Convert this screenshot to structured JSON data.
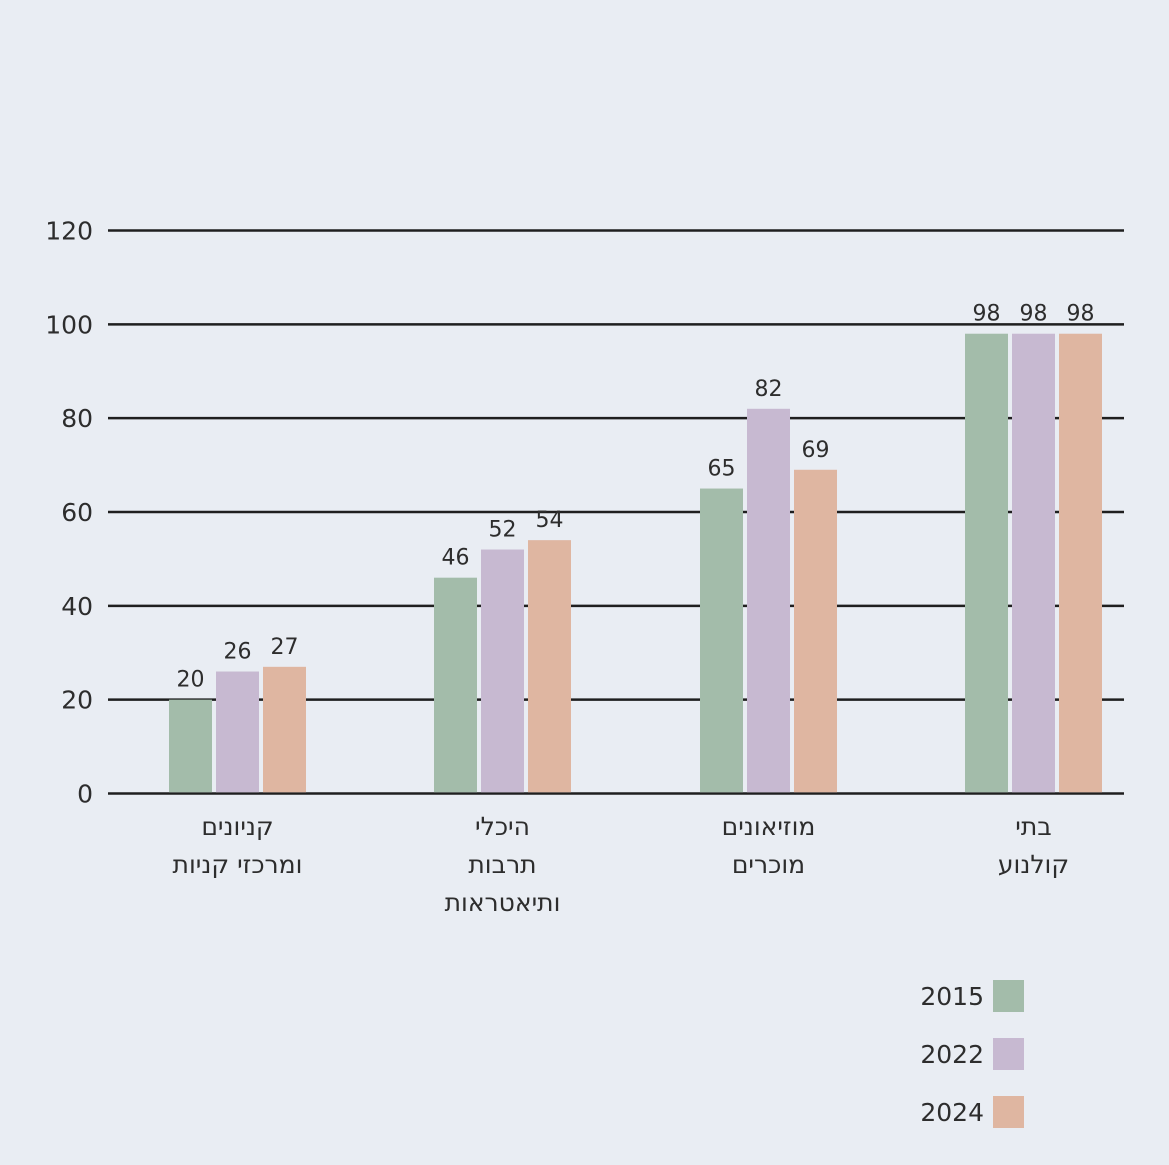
{
  "chart_data": {
    "type": "bar",
    "categories": [
      [
        "קניונים",
        "ומרכזי קניות"
      ],
      [
        "היכלי",
        "תרבות",
        "ותיאטראות"
      ],
      [
        "מוזיאונים",
        "מוכרים"
      ],
      [
        "בתי",
        "קולנוע"
      ]
    ],
    "series": [
      {
        "name": "2015",
        "values": [
          20,
          46,
          65,
          98
        ]
      },
      {
        "name": "2022",
        "values": [
          26,
          52,
          82,
          98
        ]
      },
      {
        "name": "2024",
        "values": [
          27,
          54,
          69,
          98
        ]
      }
    ],
    "ylim": [
      0,
      120
    ],
    "yticks": [
      0,
      20,
      40,
      60,
      80,
      100,
      120
    ],
    "grid": true,
    "legend_position": "bottom-right",
    "colors": [
      "#a3bcaa",
      "#c7b9d1",
      "#dfb6a1"
    ],
    "axis_color": "#1f1f1f"
  }
}
